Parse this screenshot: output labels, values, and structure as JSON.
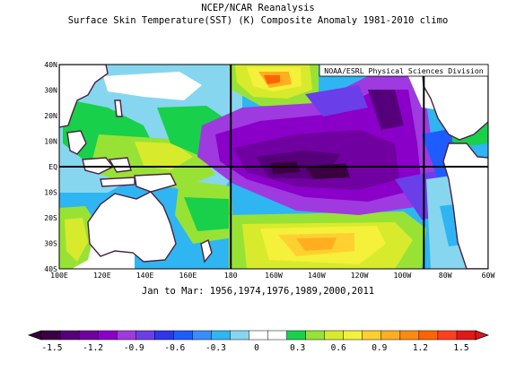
{
  "title_line1": "NCEP/NCAR Reanalysis",
  "title_line2": "Surface Skin Temperature(SST) (K) Composite Anomaly 1981-2010 climo",
  "credit": "NOAA/ESRL Physical Sciences Division",
  "date_range": "Jan to Mar: 1956,1974,1976,1989,2000,2011",
  "map": {
    "lat_labels": [
      "40N",
      "30N",
      "20N",
      "10N",
      "EQ",
      "10S",
      "20S",
      "30S",
      "40S"
    ],
    "lon_labels": [
      "100E",
      "120E",
      "140E",
      "160E",
      "180",
      "160W",
      "140W",
      "120W",
      "100W",
      "80W",
      "60W"
    ],
    "lat_values": [
      40,
      30,
      20,
      10,
      0,
      -10,
      -20,
      -30,
      -40
    ],
    "lon_values": [
      100,
      120,
      140,
      160,
      180,
      200,
      220,
      240,
      260,
      280,
      300
    ],
    "region_box": {
      "lon_min": 180,
      "lon_max": 270,
      "lat_min": -40,
      "lat_max": 40,
      "equator_line": true
    }
  },
  "colorbar": {
    "tick_labels": [
      "-1.5",
      "-1.2",
      "-0.9",
      "-0.6",
      "-0.3",
      "0",
      "0.3",
      "0.6",
      "0.9",
      "1.2",
      "1.5"
    ],
    "colors": [
      "#3a0040",
      "#55007a",
      "#7000a0",
      "#8a00c8",
      "#9e3ae0",
      "#6a3ee8",
      "#2f36ee",
      "#1e5cff",
      "#3a8cff",
      "#2fb5f2",
      "#86d6f0",
      "#ffffff",
      "#ffffff",
      "#18d04a",
      "#98e236",
      "#d7eb2c",
      "#f5f03a",
      "#ffd030",
      "#ffae20",
      "#ff8a10",
      "#ff6400",
      "#ff4020",
      "#e01818"
    ]
  }
}
